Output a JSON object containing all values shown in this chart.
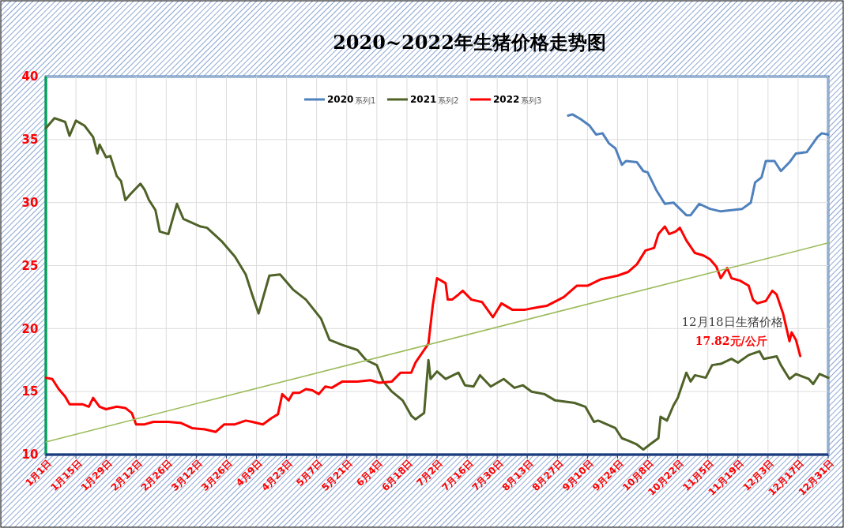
{
  "chart_data": {
    "type": "line",
    "title": "2020~2022年生猪价格走势图",
    "xlim": [
      "--01-01",
      "--12-31"
    ],
    "xticks": [
      {
        "value": "--01-01",
        "label": "1月1日"
      },
      {
        "value": "--01-15",
        "label": "1月15日"
      },
      {
        "value": "--01-29",
        "label": "1月29日"
      },
      {
        "value": "--02-12",
        "label": "2月12日"
      },
      {
        "value": "--02-26",
        "label": "2月26日"
      },
      {
        "value": "--03-12",
        "label": "3月12日"
      },
      {
        "value": "--03-26",
        "label": "3月26日"
      },
      {
        "value": "--04-09",
        "label": "4月9日"
      },
      {
        "value": "--04-23",
        "label": "4月23日"
      },
      {
        "value": "--05-07",
        "label": "5月7日"
      },
      {
        "value": "--05-21",
        "label": "5月21日"
      },
      {
        "value": "--06-04",
        "label": "6月4日"
      },
      {
        "value": "--06-18",
        "label": "6月18日"
      },
      {
        "value": "--07-02",
        "label": "7月2日"
      },
      {
        "value": "--07-16",
        "label": "7月16日"
      },
      {
        "value": "--07-30",
        "label": "7月30日"
      },
      {
        "value": "--08-13",
        "label": "8月13日"
      },
      {
        "value": "--08-27",
        "label": "8月27日"
      },
      {
        "value": "--09-10",
        "label": "9月10日"
      },
      {
        "value": "--09-24",
        "label": "9月24日"
      },
      {
        "value": "--10-08",
        "label": "10月8日"
      },
      {
        "value": "--10-22",
        "label": "10月22日"
      },
      {
        "value": "--11-05",
        "label": "11月5日"
      },
      {
        "value": "--11-19",
        "label": "11月19日"
      },
      {
        "value": "--12-03",
        "label": "12月3日"
      },
      {
        "value": "--12-17",
        "label": "12月17日"
      },
      {
        "value": "--12-31",
        "label": "12月31日"
      }
    ],
    "ylim": [
      10,
      40
    ],
    "yticks": [
      10,
      15,
      20,
      25,
      30,
      35,
      40
    ],
    "grid": true,
    "legend": "top",
    "marker": "none",
    "line_style": "solid",
    "series": [
      {
        "name": "2020",
        "color": "#4f81bd",
        "x": [
          "--09-01",
          "--09-03",
          "--09-07",
          "--09-11",
          "--09-14",
          "--09-17",
          "--09-20",
          "--09-23",
          "--09-26",
          "--09-28",
          "--10-03",
          "--10-06",
          "--10-08",
          "--10-12",
          "--10-16",
          "--10-20",
          "--10-23",
          "--10-26",
          "--10-28",
          "--11-01",
          "--11-06",
          "--11-11",
          "--11-16",
          "--11-21",
          "--11-25",
          "--11-27",
          "--11-30",
          "--12-02",
          "--12-06",
          "--12-09",
          "--12-13",
          "--12-16",
          "--12-21",
          "--12-26",
          "--12-28",
          "--12-31"
        ],
        "values": [
          36.9,
          37.0,
          36.6,
          36.1,
          35.4,
          35.5,
          34.7,
          34.3,
          33.0,
          33.3,
          33.2,
          32.5,
          32.4,
          31.0,
          29.9,
          30.0,
          29.5,
          29.0,
          29.0,
          29.9,
          29.5,
          29.3,
          29.4,
          29.5,
          30.0,
          31.6,
          32.0,
          33.3,
          33.3,
          32.5,
          33.2,
          33.9,
          34.0,
          35.2,
          35.5,
          35.4
        ]
      },
      {
        "name": "2021",
        "color": "#4f6228",
        "x": [
          "--01-01",
          "--01-05",
          "--01-10",
          "--01-12",
          "--01-15",
          "--01-19",
          "--01-23",
          "--01-25",
          "--01-26",
          "--01-29",
          "--01-31",
          "--02-03",
          "--02-05",
          "--02-07",
          "--02-09",
          "--02-14",
          "--02-16",
          "--02-18",
          "--02-21",
          "--02-23",
          "--02-27",
          "--03-03",
          "--03-06",
          "--03-14",
          "--03-17",
          "--03-24",
          "--03-30",
          "--04-04",
          "--04-07",
          "--04-10",
          "--04-15",
          "--04-20",
          "--04-26",
          "--05-02",
          "--05-09",
          "--05-13",
          "--05-19",
          "--05-26",
          "--05-30",
          "--06-04",
          "--06-07",
          "--06-11",
          "--06-16",
          "--06-20",
          "--06-22",
          "--06-26",
          "--06-28",
          "--06-29",
          "--07-02",
          "--07-06",
          "--07-12",
          "--07-15",
          "--07-19",
          "--07-22",
          "--07-27",
          "--08-02",
          "--08-07",
          "--08-11",
          "--08-15",
          "--08-21",
          "--08-26",
          "--09-04",
          "--09-09",
          "--09-13",
          "--09-15",
          "--09-19",
          "--09-23",
          "--09-26",
          "--09-29",
          "--10-03",
          "--10-06",
          "--10-09",
          "--10-13",
          "--10-14",
          "--10-17",
          "--10-20",
          "--10-22",
          "--10-26",
          "--10-28",
          "--10-30",
          "--11-04",
          "--11-07",
          "--11-11",
          "--11-16",
          "--11-19",
          "--11-24",
          "--11-29",
          "--12-01",
          "--12-07",
          "--12-09",
          "--12-13",
          "--12-16",
          "--12-22",
          "--12-24",
          "--12-27",
          "--12-31"
        ],
        "values": [
          35.9,
          36.7,
          36.4,
          35.3,
          36.5,
          36.1,
          35.2,
          33.9,
          34.6,
          33.6,
          33.7,
          32.1,
          31.7,
          30.2,
          30.6,
          31.5,
          31.0,
          30.2,
          29.4,
          27.7,
          27.5,
          29.9,
          28.7,
          28.1,
          28.0,
          26.9,
          25.7,
          24.3,
          22.7,
          21.2,
          24.2,
          24.3,
          23.1,
          22.3,
          20.8,
          19.1,
          18.7,
          18.3,
          17.5,
          17.1,
          15.8,
          15.0,
          14.3,
          13.1,
          12.8,
          13.3,
          17.5,
          16.0,
          16.6,
          16.0,
          16.5,
          15.5,
          15.4,
          16.3,
          15.4,
          16.0,
          15.3,
          15.5,
          15.0,
          14.8,
          14.3,
          14.1,
          13.8,
          12.6,
          12.7,
          12.4,
          12.1,
          11.3,
          11.1,
          10.8,
          10.4,
          10.8,
          11.3,
          13.0,
          12.7,
          13.9,
          14.5,
          16.5,
          15.8,
          16.3,
          16.1,
          17.1,
          17.2,
          17.6,
          17.3,
          17.9,
          18.2,
          17.6,
          17.8,
          17.1,
          16.0,
          16.4,
          16.0,
          15.6,
          16.4,
          16.1
        ]
      },
      {
        "name": "2022",
        "color": "#ff0000",
        "x": [
          "--01-01",
          "--01-04",
          "--01-07",
          "--01-10",
          "--01-12",
          "--01-18",
          "--01-21",
          "--01-23",
          "--01-26",
          "--01-29",
          "--02-03",
          "--02-07",
          "--02-10",
          "--02-12",
          "--02-16",
          "--02-20",
          "--02-27",
          "--03-05",
          "--03-10",
          "--03-16",
          "--03-21",
          "--03-25",
          "--03-30",
          "--04-04",
          "--04-07",
          "--04-12",
          "--04-16",
          "--04-19",
          "--04-21",
          "--04-24",
          "--04-26",
          "--04-29",
          "--05-02",
          "--05-05",
          "--05-08",
          "--05-11",
          "--05-14",
          "--05-19",
          "--05-26",
          "--06-01",
          "--06-05",
          "--06-11",
          "--06-15",
          "--06-20",
          "--06-22",
          "--06-24",
          "--06-28",
          "--06-29",
          "--06-30",
          "--07-02",
          "--07-06",
          "--07-07",
          "--07-09",
          "--07-12",
          "--07-14",
          "--07-18",
          "--07-23",
          "--07-28",
          "--08-01",
          "--08-06",
          "--08-12",
          "--08-18",
          "--08-22",
          "--08-30",
          "--09-05",
          "--09-10",
          "--09-16",
          "--09-24",
          "--09-29",
          "--10-03",
          "--10-07",
          "--10-11",
          "--10-13",
          "--10-16",
          "--10-18",
          "--10-21",
          "--10-23",
          "--10-26",
          "--10-30",
          "--11-03",
          "--11-06",
          "--11-09",
          "--11-11",
          "--11-14",
          "--11-16",
          "--11-20",
          "--11-24",
          "--11-26",
          "--11-28",
          "--12-02",
          "--12-05",
          "--12-07",
          "--12-10",
          "--12-13",
          "--12-14",
          "--12-16",
          "--12-18"
        ],
        "values": [
          16.1,
          16.0,
          15.2,
          14.6,
          14.0,
          14.0,
          13.8,
          14.5,
          13.8,
          13.6,
          13.8,
          13.7,
          13.3,
          12.4,
          12.4,
          12.6,
          12.6,
          12.5,
          12.1,
          12.0,
          11.8,
          12.4,
          12.4,
          12.7,
          12.6,
          12.4,
          12.9,
          13.2,
          14.8,
          14.3,
          14.9,
          14.9,
          15.2,
          15.1,
          14.8,
          15.4,
          15.3,
          15.8,
          15.8,
          15.9,
          15.7,
          15.8,
          16.5,
          16.5,
          17.3,
          17.8,
          18.8,
          20.3,
          21.8,
          24.0,
          23.6,
          22.3,
          22.3,
          22.7,
          23.0,
          22.3,
          22.1,
          20.9,
          22.0,
          21.5,
          21.5,
          21.7,
          21.8,
          22.5,
          23.4,
          23.4,
          23.9,
          24.2,
          24.5,
          25.1,
          26.2,
          26.4,
          27.5,
          28.1,
          27.5,
          27.7,
          28.0,
          27.0,
          26.0,
          25.8,
          25.5,
          24.9,
          24.0,
          24.8,
          24.0,
          23.8,
          23.4,
          22.3,
          22.0,
          22.2,
          23.0,
          22.7,
          21.2,
          19.0,
          19.7,
          19.1,
          17.82
        ]
      },
      {
        "type": "line",
        "color": "#9bbb59",
        "x": [
          "--01-01",
          "--12-31"
        ],
        "values": [
          11.0,
          26.8
        ]
      }
    ],
    "annotations": [
      "系列1",
      "系列2",
      "系列3",
      {
        "text": "12月18日生猪价格",
        "x": "--12-18",
        "y": 17.82
      },
      "17.82元/公斤"
    ]
  }
}
